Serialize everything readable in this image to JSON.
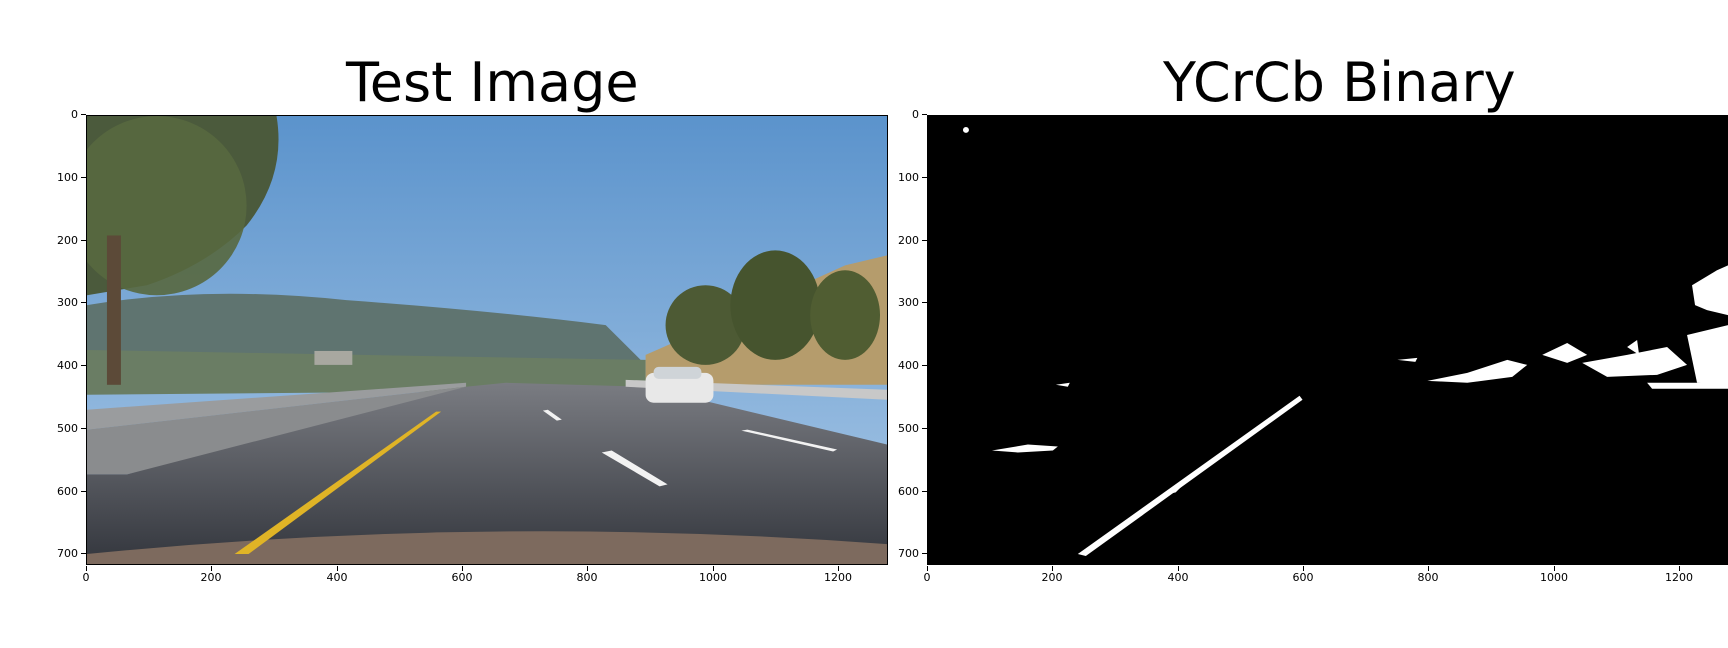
{
  "panels": [
    {
      "title": "Test Image",
      "y_ticks": [
        "0",
        "100",
        "200",
        "300",
        "400",
        "500",
        "600",
        "700"
      ],
      "x_ticks": [
        "0",
        "200",
        "400",
        "600",
        "800",
        "1000",
        "1200"
      ]
    },
    {
      "title": "YCrCb Binary",
      "y_ticks": [
        "0",
        "100",
        "200",
        "300",
        "400",
        "500",
        "600",
        "700"
      ],
      "x_ticks": [
        "0",
        "200",
        "400",
        "600",
        "800",
        "1000",
        "1200"
      ]
    }
  ],
  "colors": {
    "sky": "#6fa3d6",
    "hills": "#5a6e6a",
    "road": "#3c3f46",
    "lane_yellow": "#e0b426",
    "lane_white": "#f2f2f2",
    "binary_bg": "#000000",
    "binary_fg": "#ffffff"
  }
}
